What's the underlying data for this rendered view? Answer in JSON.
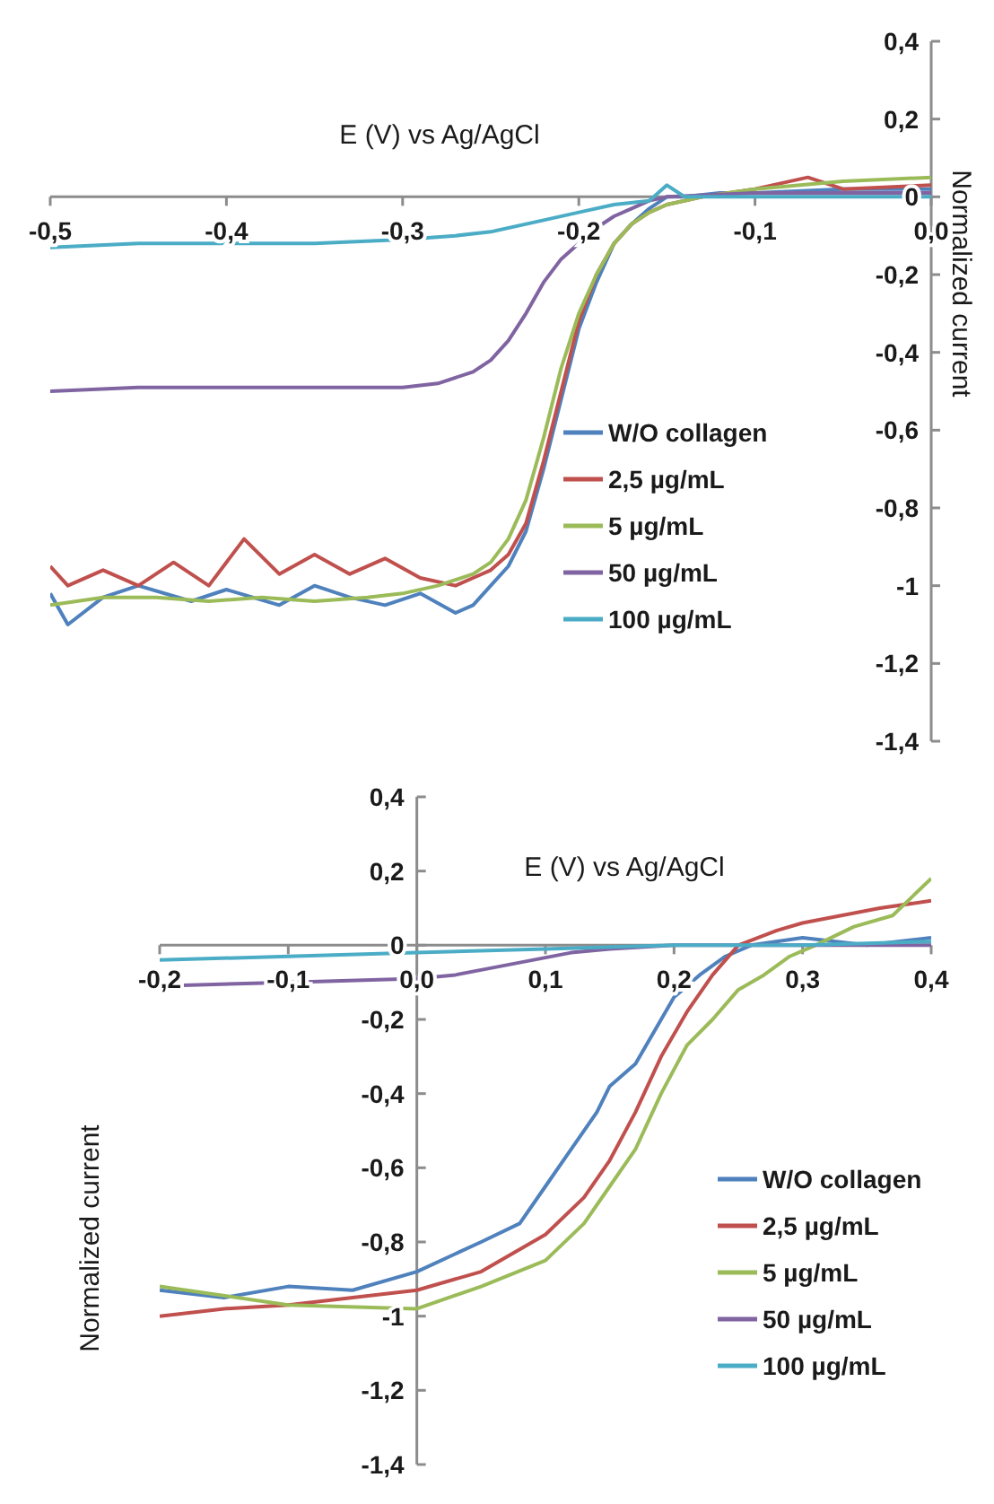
{
  "chart_data": [
    {
      "type": "line",
      "xlabel": "E (V) vs Ag/AgCl",
      "ylabel": "Normalized current",
      "legend": "bottom right",
      "grid": false,
      "marker": "none",
      "xlim": [
        -0.5,
        0
      ],
      "xticks": [
        {
          "value": -0.5,
          "label": "-0,5"
        },
        {
          "value": -0.4,
          "label": "-0,4"
        },
        {
          "value": -0.3,
          "label": "-0,3"
        },
        {
          "value": -0.2,
          "label": "-0,2"
        },
        {
          "value": -0.1,
          "label": "-0,1"
        },
        {
          "value": 0,
          "label": "0,0"
        }
      ],
      "ylim": [
        -1.4,
        0.4
      ],
      "yticks": [
        {
          "value": 0.4,
          "label": "0,4"
        },
        {
          "value": 0.2,
          "label": "0,2"
        },
        {
          "value": 0,
          "label": "0"
        },
        {
          "value": -0.2,
          "label": "-0,2"
        },
        {
          "value": -0.4,
          "label": "-0,4"
        },
        {
          "value": -0.6,
          "label": "-0,6"
        },
        {
          "value": -0.8,
          "label": "-0,8"
        },
        {
          "value": -1,
          "label": "-1"
        },
        {
          "value": -1.2,
          "label": "-1,2"
        },
        {
          "value": -1.4,
          "label": "-1,4"
        }
      ],
      "series": [
        {
          "name": "W/O collagen",
          "color": "#4f81bd",
          "x": [
            -0.5,
            -0.49,
            -0.47,
            -0.45,
            -0.42,
            -0.4,
            -0.37,
            -0.35,
            -0.33,
            -0.31,
            -0.29,
            -0.27,
            -0.26,
            -0.25,
            -0.24,
            -0.23,
            -0.22,
            -0.21,
            -0.2,
            -0.19,
            -0.18,
            -0.17,
            -0.16,
            -0.15,
            -0.14,
            -0.12,
            -0.1,
            -0.05,
            0
          ],
          "values": [
            -1.02,
            -1.1,
            -1.03,
            -1.0,
            -1.04,
            -1.01,
            -1.05,
            -1.0,
            -1.03,
            -1.05,
            -1.02,
            -1.07,
            -1.05,
            -1.0,
            -0.95,
            -0.86,
            -0.7,
            -0.52,
            -0.34,
            -0.22,
            -0.12,
            -0.07,
            -0.03,
            0.0,
            0.0,
            0.01,
            0.01,
            0.02,
            0.02
          ]
        },
        {
          "name": "2,5 µg/mL",
          "color": "#c0504d",
          "x": [
            -0.5,
            -0.49,
            -0.47,
            -0.45,
            -0.43,
            -0.41,
            -0.39,
            -0.37,
            -0.35,
            -0.33,
            -0.31,
            -0.29,
            -0.27,
            -0.26,
            -0.25,
            -0.24,
            -0.23,
            -0.22,
            -0.21,
            -0.2,
            -0.19,
            -0.18,
            -0.17,
            -0.16,
            -0.15,
            -0.13,
            -0.1,
            -0.07,
            -0.05,
            0
          ],
          "values": [
            -0.95,
            -1.0,
            -0.96,
            -1.0,
            -0.94,
            -1.0,
            -0.88,
            -0.97,
            -0.92,
            -0.97,
            -0.93,
            -0.98,
            -1.0,
            -0.98,
            -0.96,
            -0.92,
            -0.84,
            -0.68,
            -0.5,
            -0.32,
            -0.2,
            -0.12,
            -0.07,
            -0.04,
            -0.02,
            0.0,
            0.02,
            0.05,
            0.02,
            0.03
          ]
        },
        {
          "name": "5 µg/mL",
          "color": "#9bbb59",
          "x": [
            -0.5,
            -0.47,
            -0.44,
            -0.41,
            -0.38,
            -0.35,
            -0.32,
            -0.3,
            -0.28,
            -0.26,
            -0.25,
            -0.24,
            -0.23,
            -0.22,
            -0.21,
            -0.2,
            -0.19,
            -0.18,
            -0.17,
            -0.16,
            -0.15,
            -0.13,
            -0.1,
            -0.05,
            0
          ],
          "values": [
            -1.05,
            -1.03,
            -1.03,
            -1.04,
            -1.03,
            -1.04,
            -1.03,
            -1.02,
            -1.0,
            -0.97,
            -0.94,
            -0.88,
            -0.78,
            -0.62,
            -0.44,
            -0.3,
            -0.2,
            -0.12,
            -0.07,
            -0.04,
            -0.02,
            0.0,
            0.02,
            0.04,
            0.05
          ]
        },
        {
          "name": "50 µg/mL",
          "color": "#8064a2",
          "x": [
            -0.5,
            -0.45,
            -0.4,
            -0.35,
            -0.3,
            -0.28,
            -0.26,
            -0.25,
            -0.24,
            -0.23,
            -0.22,
            -0.21,
            -0.2,
            -0.19,
            -0.18,
            -0.17,
            -0.16,
            -0.15,
            -0.1,
            0
          ],
          "values": [
            -0.5,
            -0.49,
            -0.49,
            -0.49,
            -0.49,
            -0.48,
            -0.45,
            -0.42,
            -0.37,
            -0.3,
            -0.22,
            -0.16,
            -0.12,
            -0.08,
            -0.05,
            -0.03,
            -0.01,
            0.0,
            0.01,
            0.01
          ]
        },
        {
          "name": "100 µg/mL",
          "color": "#4bacc6",
          "x": [
            -0.5,
            -0.45,
            -0.4,
            -0.35,
            -0.3,
            -0.27,
            -0.25,
            -0.22,
            -0.2,
            -0.18,
            -0.16,
            -0.15,
            -0.14,
            -0.1,
            0
          ],
          "values": [
            -0.13,
            -0.12,
            -0.12,
            -0.12,
            -0.11,
            -0.1,
            -0.09,
            -0.06,
            -0.04,
            -0.02,
            -0.01,
            0.03,
            0.0,
            0.0,
            0.0
          ]
        }
      ]
    },
    {
      "type": "line",
      "xlabel": "E (V) vs Ag/AgCl",
      "ylabel": "Normalized current",
      "legend": "bottom right",
      "grid": false,
      "marker": "none",
      "xlim": [
        -0.2,
        0.4
      ],
      "xticks": [
        {
          "value": -0.2,
          "label": "-0,2"
        },
        {
          "value": -0.1,
          "label": "-0,1"
        },
        {
          "value": 0,
          "label": "0,0"
        },
        {
          "value": 0.1,
          "label": "0,1"
        },
        {
          "value": 0.2,
          "label": "0,2"
        },
        {
          "value": 0.3,
          "label": "0,3"
        },
        {
          "value": 0.4,
          "label": "0,4"
        }
      ],
      "ylim": [
        -1.4,
        0.4
      ],
      "yticks": [
        {
          "value": 0.4,
          "label": "0,4"
        },
        {
          "value": 0.2,
          "label": "0,2"
        },
        {
          "value": 0,
          "label": "0"
        },
        {
          "value": -0.2,
          "label": "-0,2"
        },
        {
          "value": -0.4,
          "label": "-0,4"
        },
        {
          "value": -0.6,
          "label": "-0,6"
        },
        {
          "value": -0.8,
          "label": "-0,8"
        },
        {
          "value": -1,
          "label": "-1"
        },
        {
          "value": -1.2,
          "label": "-1,2"
        },
        {
          "value": -1.4,
          "label": "-1,4"
        }
      ],
      "series": [
        {
          "name": "W/O collagen",
          "color": "#4f81bd",
          "x": [
            -0.2,
            -0.15,
            -0.1,
            -0.05,
            0,
            0.05,
            0.08,
            0.1,
            0.12,
            0.14,
            0.15,
            0.17,
            0.19,
            0.2,
            0.22,
            0.24,
            0.26,
            0.3,
            0.35,
            0.4
          ],
          "values": [
            -0.93,
            -0.95,
            -0.92,
            -0.93,
            -0.88,
            -0.8,
            -0.75,
            -0.65,
            -0.55,
            -0.45,
            -0.38,
            -0.32,
            -0.2,
            -0.14,
            -0.08,
            -0.03,
            0.0,
            0.02,
            0.0,
            0.02
          ]
        },
        {
          "name": "2,5 µg/mL",
          "color": "#c0504d",
          "x": [
            -0.2,
            -0.15,
            -0.1,
            -0.05,
            0,
            0.05,
            0.1,
            0.13,
            0.15,
            0.17,
            0.19,
            0.21,
            0.23,
            0.25,
            0.28,
            0.3,
            0.33,
            0.36,
            0.4
          ],
          "values": [
            -1.0,
            -0.98,
            -0.97,
            -0.95,
            -0.93,
            -0.88,
            -0.78,
            -0.68,
            -0.58,
            -0.45,
            -0.3,
            -0.18,
            -0.08,
            0.0,
            0.04,
            0.06,
            0.08,
            0.1,
            0.12
          ]
        },
        {
          "name": "5 µg/mL",
          "color": "#9bbb59",
          "x": [
            -0.2,
            -0.1,
            0,
            0.05,
            0.1,
            0.13,
            0.15,
            0.17,
            0.19,
            0.21,
            0.23,
            0.25,
            0.27,
            0.29,
            0.31,
            0.34,
            0.37,
            0.4
          ],
          "values": [
            -0.92,
            -0.97,
            -0.98,
            -0.92,
            -0.85,
            -0.75,
            -0.65,
            -0.55,
            -0.4,
            -0.27,
            -0.2,
            -0.12,
            -0.08,
            -0.03,
            0.0,
            0.05,
            0.08,
            0.18
          ]
        },
        {
          "name": "50 µg/mL",
          "color": "#8064a2",
          "x": [
            -0.2,
            -0.1,
            0,
            0.03,
            0.06,
            0.09,
            0.12,
            0.15,
            0.2,
            0.4
          ],
          "values": [
            -0.11,
            -0.1,
            -0.09,
            -0.08,
            -0.06,
            -0.04,
            -0.02,
            -0.01,
            0.0,
            0.0
          ]
        },
        {
          "name": "100 µg/mL",
          "color": "#4bacc6",
          "x": [
            -0.2,
            -0.1,
            0,
            0.1,
            0.2,
            0.3,
            0.4
          ],
          "values": [
            -0.04,
            -0.03,
            -0.02,
            -0.01,
            0.0,
            0.0,
            0.01
          ]
        }
      ]
    }
  ]
}
